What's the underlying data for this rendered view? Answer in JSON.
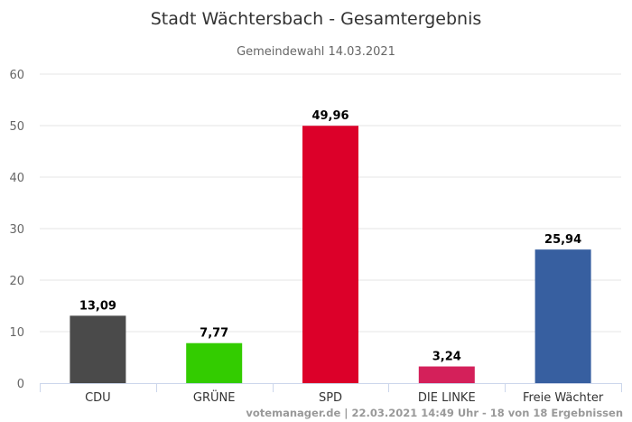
{
  "chart_data": {
    "type": "bar",
    "title": "Stadt Wächtersbach - Gesamtergebnis",
    "subtitle": "Gemeindewahl 14.03.2021",
    "categories": [
      "CDU",
      "GRÜNE",
      "SPD",
      "DIE LINKE",
      "Freie Wächter"
    ],
    "values": [
      13.09,
      7.77,
      49.96,
      3.24,
      25.94
    ],
    "data_labels": [
      "13,09",
      "7,77",
      "49,96",
      "3,24",
      "25,94"
    ],
    "colors": [
      "#4a4a4a",
      "#33cc00",
      "#dc0029",
      "#d4205a",
      "#375fa0"
    ],
    "ylim": [
      0,
      60
    ],
    "yticks": [
      "0",
      "10",
      "20",
      "30",
      "40",
      "50",
      "60"
    ],
    "grid": true,
    "xlabel": "",
    "ylabel": "",
    "credit": "votemanager.de | 22.03.2021 14:49 Uhr - 18 von 18 Ergebnissen"
  }
}
